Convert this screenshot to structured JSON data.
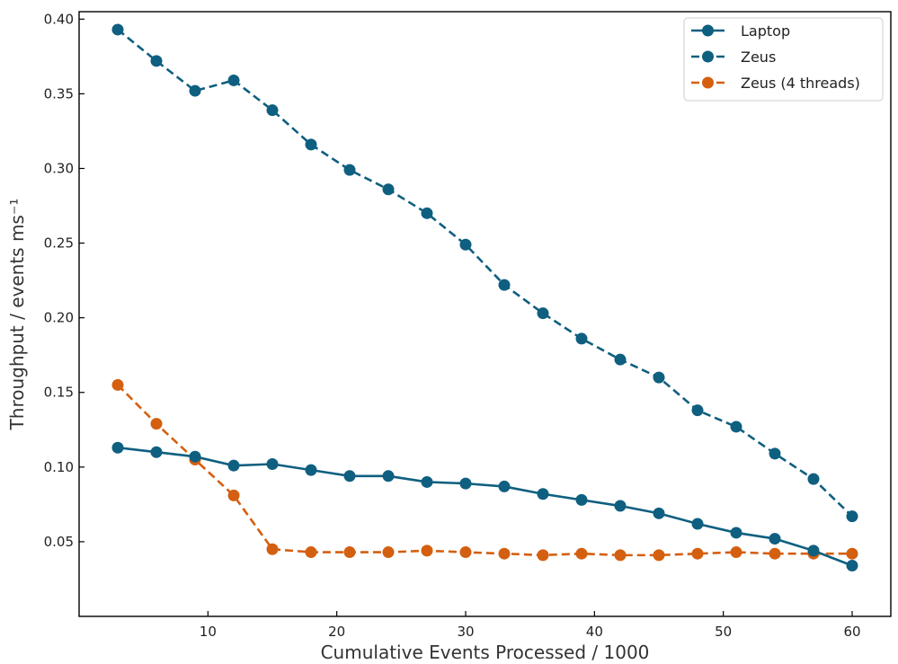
{
  "chart_data": {
    "type": "line",
    "xlabel": "Cumulative Events Processed / 1000",
    "ylabel": "Throughput / events ms⁻¹",
    "xlim": [
      0,
      63
    ],
    "ylim": [
      0.0,
      0.405
    ],
    "x_ticks": [
      10,
      20,
      30,
      40,
      50,
      60
    ],
    "y_ticks": [
      0.05,
      0.1,
      0.15,
      0.2,
      0.25,
      0.3,
      0.35,
      0.4
    ],
    "x_tick_labels": [
      "10",
      "20",
      "30",
      "40",
      "50",
      "60"
    ],
    "y_tick_labels": [
      "0.05",
      "0.10",
      "0.15",
      "0.20",
      "0.25",
      "0.30",
      "0.35",
      "0.40"
    ],
    "grid": false,
    "legend_position": "top-right",
    "x": [
      3,
      6,
      9,
      12,
      15,
      18,
      21,
      24,
      27,
      30,
      33,
      36,
      39,
      42,
      45,
      48,
      51,
      54,
      57,
      60
    ],
    "series": [
      {
        "name": "Laptop",
        "color": "#0f5f80",
        "linestyle": "solid",
        "values": [
          0.113,
          0.11,
          0.107,
          0.101,
          0.102,
          0.098,
          0.094,
          0.094,
          0.09,
          0.089,
          0.087,
          0.082,
          0.078,
          0.074,
          0.069,
          0.062,
          0.056,
          0.052,
          0.044,
          0.034
        ]
      },
      {
        "name": "Zeus",
        "color": "#0f5f80",
        "linestyle": "dashed",
        "values": [
          0.393,
          0.372,
          0.352,
          0.359,
          0.339,
          0.316,
          0.299,
          0.286,
          0.27,
          0.249,
          0.222,
          0.203,
          0.186,
          0.172,
          0.16,
          0.138,
          0.127,
          0.109,
          0.092,
          0.067
        ]
      },
      {
        "name": "Zeus (4 threads)",
        "color": "#d45f10",
        "linestyle": "dashed",
        "values": [
          0.155,
          0.129,
          0.105,
          0.081,
          0.045,
          0.043,
          0.043,
          0.043,
          0.044,
          0.043,
          0.042,
          0.041,
          0.042,
          0.041,
          0.041,
          0.042,
          0.043,
          0.042,
          0.042,
          0.042
        ]
      }
    ]
  }
}
